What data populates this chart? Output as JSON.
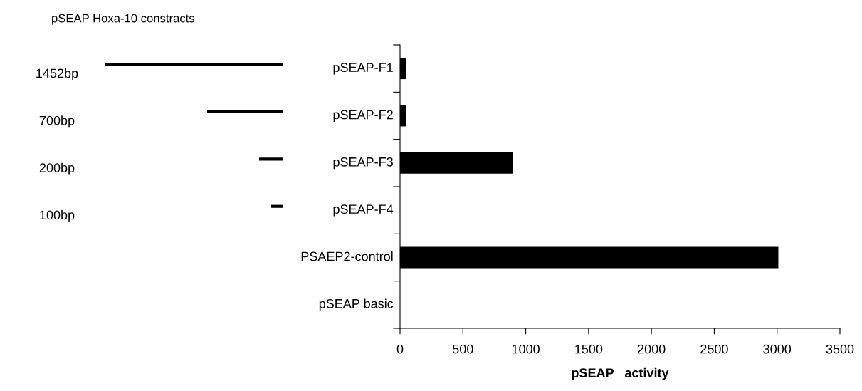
{
  "chart_data": {
    "type": "bar",
    "orientation": "horizontal",
    "title": "pSEAP Hoxa-10 constracts",
    "xlabel": "pSEAP   activity",
    "categories": [
      "pSEAP-F1",
      "pSEAP-F2",
      "pSEAP-F3",
      "pSEAP-F4",
      "PSAEP2-control",
      "pSEAP basic"
    ],
    "values": [
      50,
      50,
      900,
      0,
      3010,
      0
    ],
    "color": "#000000",
    "xlim": [
      0,
      3500
    ],
    "xticks": [
      0,
      500,
      1000,
      1500,
      2000,
      2500,
      3000,
      3500
    ],
    "annotations": [
      "1452bp",
      "700bp",
      "200bp",
      "100bp"
    ],
    "grid": false,
    "legend": false
  }
}
